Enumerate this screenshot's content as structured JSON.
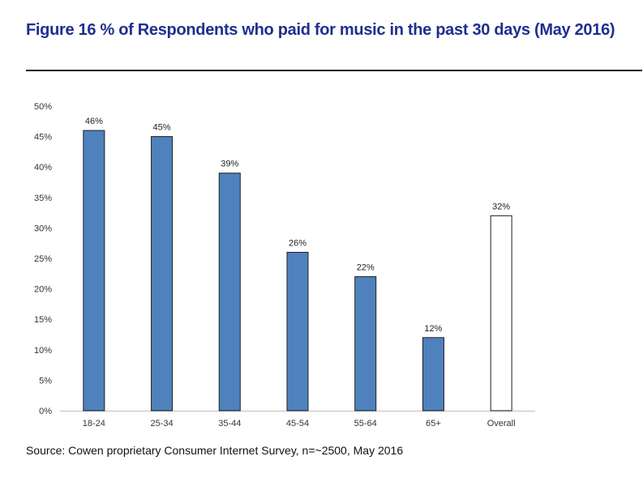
{
  "figure": {
    "title": "Figure 16 % of Respondents who paid for music in the past 30 days (May 2016)",
    "source": "Source: Cowen proprietary Consumer Internet Survey, n=~2500, May 2016"
  },
  "colors": {
    "title": "#1f2f8f",
    "bar_fill": "#4f81bd",
    "highlight_fill": "#ffffff",
    "bar_stroke": "#1f1f1f",
    "axis": "#bfbfbf"
  },
  "chart_data": {
    "type": "bar",
    "categories": [
      "18-24",
      "25-34",
      "35-44",
      "45-54",
      "55-64",
      "65+",
      "Overall"
    ],
    "values": [
      46,
      45,
      39,
      26,
      22,
      12,
      32
    ],
    "data_labels": [
      "46%",
      "45%",
      "39%",
      "26%",
      "22%",
      "12%",
      "32%"
    ],
    "y_ticks": [
      0,
      5,
      10,
      15,
      20,
      25,
      30,
      35,
      40,
      45,
      50
    ],
    "y_tick_labels": [
      "0%",
      "5%",
      "10%",
      "15%",
      "20%",
      "25%",
      "30%",
      "35%",
      "40%",
      "45%",
      "50%"
    ],
    "ylim": [
      0,
      50
    ],
    "grid": false,
    "legend": false,
    "highlight_category": "Overall"
  }
}
